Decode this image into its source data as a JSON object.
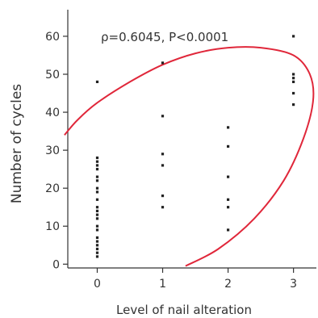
{
  "chart_data": {
    "type": "scatter",
    "annotation": "ρ=0.6045, P<0.0001",
    "xlabel": "Level of nail alteration",
    "ylabel": "Number of cycles",
    "xlim": [
      -0.45,
      3.35
    ],
    "ylim": [
      -1,
      67
    ],
    "x_ticks": [
      0,
      1,
      2,
      3
    ],
    "y_ticks": [
      0,
      10,
      20,
      30,
      40,
      50,
      60
    ],
    "grid": false,
    "series": [
      {
        "points": [
          [
            0,
            48
          ],
          [
            0,
            28
          ],
          [
            0,
            27
          ],
          [
            0,
            26
          ],
          [
            0,
            25
          ],
          [
            0,
            23
          ],
          [
            0,
            22
          ],
          [
            0,
            20
          ],
          [
            0,
            19
          ],
          [
            0,
            17
          ],
          [
            0,
            15
          ],
          [
            0,
            14
          ],
          [
            0,
            13
          ],
          [
            0,
            12
          ],
          [
            0,
            10
          ],
          [
            0,
            9
          ],
          [
            0,
            7
          ],
          [
            0,
            6
          ],
          [
            0,
            5
          ],
          [
            0,
            4
          ],
          [
            0,
            3
          ],
          [
            0,
            2
          ],
          [
            1,
            53
          ],
          [
            1,
            39
          ],
          [
            1,
            29
          ],
          [
            1,
            26
          ],
          [
            1,
            18
          ],
          [
            1,
            15
          ],
          [
            2,
            36
          ],
          [
            2,
            31
          ],
          [
            2,
            23
          ],
          [
            2,
            17
          ],
          [
            2,
            15
          ],
          [
            2,
            9
          ],
          [
            3,
            60
          ],
          [
            3,
            50
          ],
          [
            3,
            49
          ],
          [
            3,
            48
          ],
          [
            3,
            45
          ],
          [
            3,
            42
          ]
        ]
      }
    ],
    "ellipse_curve": [
      [
        -0.5,
        34
      ],
      [
        -0.3,
        38
      ],
      [
        0,
        42.5
      ],
      [
        0.5,
        48
      ],
      [
        1,
        52.5
      ],
      [
        1.5,
        55.5
      ],
      [
        2,
        57
      ],
      [
        2.5,
        57
      ],
      [
        3,
        55
      ],
      [
        3.25,
        50
      ],
      [
        3.3,
        43
      ],
      [
        3.15,
        33
      ],
      [
        2.85,
        22
      ],
      [
        2.4,
        12
      ],
      [
        1.85,
        4
      ],
      [
        1.35,
        -0.5
      ]
    ],
    "colors": {
      "points": "#222222",
      "ellipse": "#e0273a",
      "axis": "#333333"
    }
  }
}
